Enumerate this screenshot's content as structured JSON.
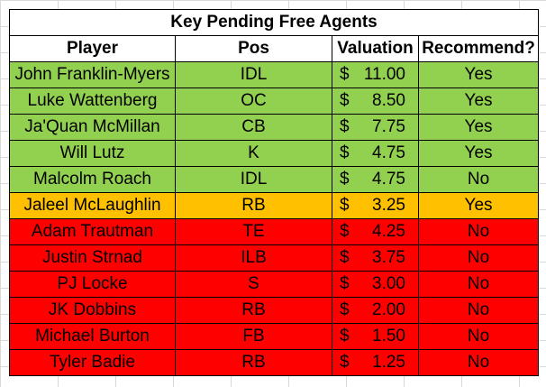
{
  "title": "Key Pending Free Agents",
  "colors": {
    "green": "#92d050",
    "orange": "#ffc000",
    "red": "#ff0000"
  },
  "headers": {
    "player": "Player",
    "pos": "Pos",
    "valuation": "Valuation",
    "recommend": "Recommend?"
  },
  "currency_symbol": "$",
  "rows": [
    {
      "player": "John Franklin-Myers",
      "pos": "IDL",
      "valuation": "11.00",
      "recommend": "Yes",
      "color": "green"
    },
    {
      "player": "Luke Wattenberg",
      "pos": "OC",
      "valuation": "8.50",
      "recommend": "Yes",
      "color": "green"
    },
    {
      "player": "Ja'Quan McMillan",
      "pos": "CB",
      "valuation": "7.75",
      "recommend": "Yes",
      "color": "green"
    },
    {
      "player": "Will Lutz",
      "pos": "K",
      "valuation": "4.75",
      "recommend": "Yes",
      "color": "green"
    },
    {
      "player": "Malcolm Roach",
      "pos": "IDL",
      "valuation": "4.75",
      "recommend": "No",
      "color": "green"
    },
    {
      "player": "Jaleel McLaughlin",
      "pos": "RB",
      "valuation": "3.25",
      "recommend": "Yes",
      "color": "orange"
    },
    {
      "player": "Adam Trautman",
      "pos": "TE",
      "valuation": "4.25",
      "recommend": "No",
      "color": "red"
    },
    {
      "player": "Justin Strnad",
      "pos": "ILB",
      "valuation": "3.75",
      "recommend": "No",
      "color": "red"
    },
    {
      "player": "PJ Locke",
      "pos": "S",
      "valuation": "3.00",
      "recommend": "No",
      "color": "red"
    },
    {
      "player": "JK Dobbins",
      "pos": "RB",
      "valuation": "2.00",
      "recommend": "No",
      "color": "red"
    },
    {
      "player": "Michael Burton",
      "pos": "FB",
      "valuation": "1.50",
      "recommend": "No",
      "color": "red"
    },
    {
      "player": "Tyler Badie",
      "pos": "RB",
      "valuation": "1.25",
      "recommend": "No",
      "color": "red"
    }
  ]
}
